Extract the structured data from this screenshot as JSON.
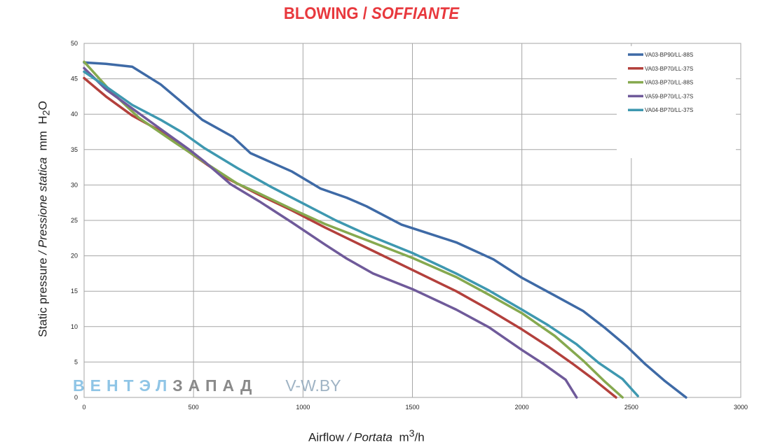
{
  "title": {
    "main": "BLOWING / ",
    "italic": "SOFFIANTE"
  },
  "watermark": {
    "part1": "ВЕНТЭЛ",
    "part2": "ЗАПАД",
    "part3": "V-W.BY"
  },
  "chart_data": {
    "type": "line",
    "title": "BLOWING / SOFFIANTE",
    "xlabel": "Airflow / Portata m³/h",
    "ylabel": "Static pressure / Pressione statica mm H2O",
    "xlim": [
      0,
      3000
    ],
    "ylim": [
      0,
      50
    ],
    "xticks": [
      "0",
      "500",
      "1000",
      "1500",
      "2000",
      "2500",
      "3000"
    ],
    "yticks": [
      "0",
      "5",
      "10",
      "15",
      "20",
      "25",
      "30",
      "35",
      "40",
      "45",
      "50"
    ],
    "grid": true,
    "legend_position": "top-right",
    "series": [
      {
        "name": "VA03-BP90/LL-88S",
        "color": "#3e6aa6",
        "points": [
          [
            0,
            47.3
          ],
          [
            100,
            47.1
          ],
          [
            220,
            46.7
          ],
          [
            350,
            44.2
          ],
          [
            450,
            41.6
          ],
          [
            540,
            39.2
          ],
          [
            680,
            36.8
          ],
          [
            760,
            34.5
          ],
          [
            950,
            31.9
          ],
          [
            1080,
            29.5
          ],
          [
            1200,
            28.2
          ],
          [
            1290,
            27
          ],
          [
            1450,
            24.4
          ],
          [
            1550,
            23.4
          ],
          [
            1700,
            21.9
          ],
          [
            1870,
            19.5
          ],
          [
            2000,
            16.9
          ],
          [
            2150,
            14.4
          ],
          [
            2280,
            12.2
          ],
          [
            2380,
            9.8
          ],
          [
            2480,
            7.2
          ],
          [
            2560,
            4.8
          ],
          [
            2650,
            2.4
          ],
          [
            2750,
            0
          ]
        ]
      },
      {
        "name": "VA03-BP70/LL-37S",
        "color": "#b3403c",
        "points": [
          [
            0,
            45.1
          ],
          [
            100,
            42.5
          ],
          [
            220,
            39.8
          ],
          [
            350,
            37.6
          ],
          [
            500,
            34.2
          ],
          [
            650,
            31
          ],
          [
            800,
            28.6
          ],
          [
            950,
            26.4
          ],
          [
            1100,
            24
          ],
          [
            1300,
            21
          ],
          [
            1500,
            18
          ],
          [
            1700,
            15
          ],
          [
            1850,
            12.4
          ],
          [
            2000,
            9.6
          ],
          [
            2120,
            7.2
          ],
          [
            2230,
            4.8
          ],
          [
            2330,
            2.5
          ],
          [
            2430,
            0
          ]
        ]
      },
      {
        "name": "VA03-BP70/LL-88S",
        "color": "#86a94f",
        "points": [
          [
            0,
            47.4
          ],
          [
            120,
            43.3
          ],
          [
            250,
            39.5
          ],
          [
            400,
            36.3
          ],
          [
            550,
            33.2
          ],
          [
            700,
            30.2
          ],
          [
            800,
            28.8
          ],
          [
            950,
            26.6
          ],
          [
            1100,
            24.5
          ],
          [
            1300,
            22.1
          ],
          [
            1500,
            19.7
          ],
          [
            1700,
            17
          ],
          [
            1850,
            14.5
          ],
          [
            2000,
            11.9
          ],
          [
            2150,
            8.7
          ],
          [
            2280,
            5.2
          ],
          [
            2380,
            2.2
          ],
          [
            2460,
            0
          ]
        ]
      },
      {
        "name": "VA59-BP70/LL-37S",
        "color": "#6f5a9a",
        "points": [
          [
            0,
            46.5
          ],
          [
            100,
            43.5
          ],
          [
            220,
            40.8
          ],
          [
            350,
            37.9
          ],
          [
            480,
            35
          ],
          [
            550,
            33.3
          ],
          [
            670,
            30.1
          ],
          [
            800,
            27.7
          ],
          [
            950,
            24.7
          ],
          [
            1100,
            21.6
          ],
          [
            1200,
            19.6
          ],
          [
            1320,
            17.5
          ],
          [
            1500,
            15.3
          ],
          [
            1700,
            12.4
          ],
          [
            1850,
            9.9
          ],
          [
            2000,
            6.7
          ],
          [
            2100,
            4.7
          ],
          [
            2200,
            2.5
          ],
          [
            2250,
            0
          ]
        ]
      },
      {
        "name": "VA04-BP70/LL-37S",
        "color": "#3e98b0",
        "points": [
          [
            0,
            46
          ],
          [
            100,
            43.9
          ],
          [
            220,
            41.3
          ],
          [
            350,
            39.2
          ],
          [
            450,
            37.4
          ],
          [
            550,
            35.2
          ],
          [
            700,
            32.4
          ],
          [
            850,
            29.8
          ],
          [
            1000,
            27.4
          ],
          [
            1150,
            25
          ],
          [
            1300,
            22.9
          ],
          [
            1500,
            20.4
          ],
          [
            1700,
            17.5
          ],
          [
            1850,
            15.1
          ],
          [
            2000,
            12.4
          ],
          [
            2120,
            10.2
          ],
          [
            2250,
            7.5
          ],
          [
            2350,
            4.9
          ],
          [
            2460,
            2.6
          ],
          [
            2530,
            0.2
          ]
        ]
      }
    ]
  }
}
